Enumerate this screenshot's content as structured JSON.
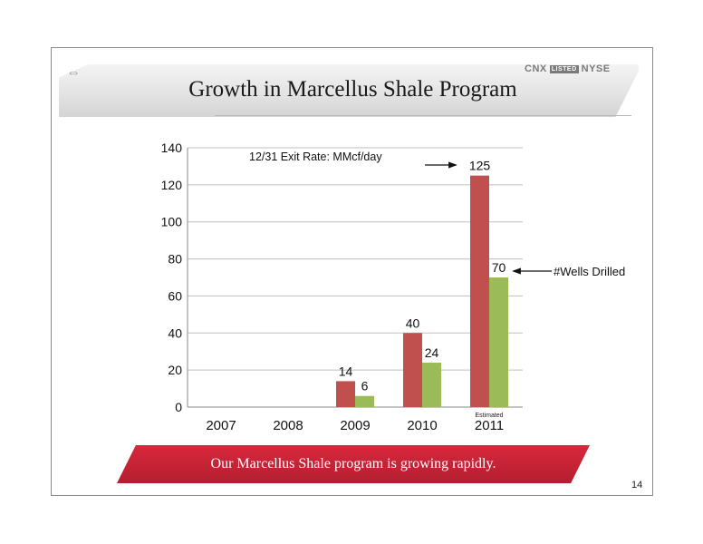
{
  "slide": {
    "title": "Growth in Marcellus Shale Program",
    "brand": {
      "name": "CNX",
      "listed": "LISTED",
      "exchange": "NYSE"
    },
    "footer": "Our Marcellus Shale program is growing rapidly.",
    "page_number": "14"
  },
  "chart_data": {
    "type": "bar",
    "categories": [
      "2007",
      "2008",
      "2009",
      "2010",
      "2011"
    ],
    "series": [
      {
        "values": [
          0,
          0,
          14,
          40,
          125
        ],
        "data_labels": [
          "",
          "",
          "14",
          "40",
          "125"
        ],
        "color": "#c0504d"
      },
      {
        "values": [
          0,
          0,
          6,
          24,
          70
        ],
        "data_labels": [
          "",
          "",
          "6",
          "24",
          "70"
        ],
        "color": "#9bbb59"
      }
    ],
    "ylim": [
      0,
      140
    ],
    "yticks": [
      0,
      20,
      40,
      60,
      80,
      100,
      120,
      140
    ],
    "grid": true,
    "legend": "none",
    "annotations": [
      {
        "text": "12/31 Exit Rate: MMcf/day",
        "points_to": "2011 red bar label (125)"
      },
      {
        "text": "#Wells Drilled",
        "points_to": "2011 green bar label (70)"
      },
      {
        "text": "Estimated",
        "under": "2011"
      }
    ]
  }
}
